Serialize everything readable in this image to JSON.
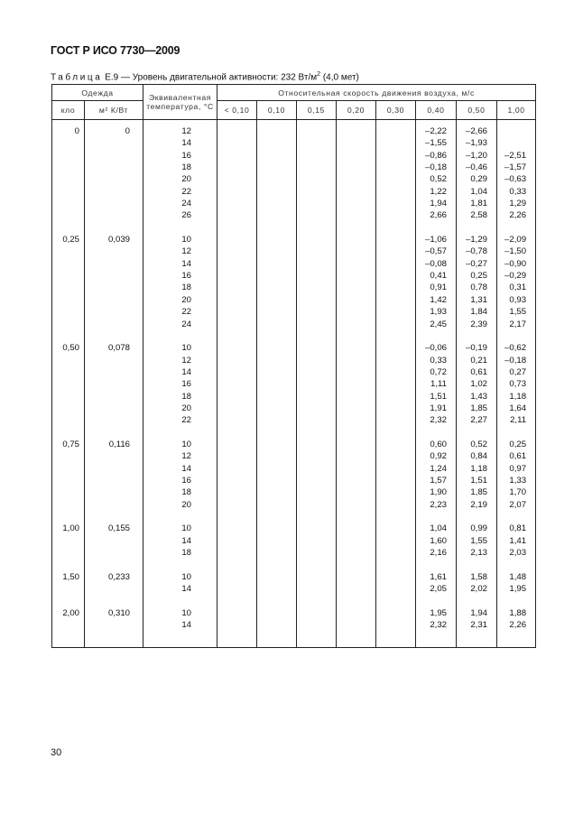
{
  "header": {
    "doc_title": "ГОСТ Р ИСО 7730—2009"
  },
  "caption": {
    "prefix": "Таблица",
    "text": " Е.9 — Уровень двигательной активности: 232 Вт/м",
    "sup": "2",
    "suffix": " (4,0 мет)"
  },
  "table": {
    "headers": {
      "clothing": "Одежда",
      "temperature": "Эквивалентная температура, °С",
      "air_speed": "Относительная скорость движения воздуха, м/с",
      "clo": "кло",
      "m2": "м² К/Вт",
      "speeds": [
        "< 0,10",
        "0,10",
        "0,15",
        "0,20",
        "0,30",
        "0,40",
        "0,50",
        "1,00"
      ]
    },
    "groups": [
      {
        "clo": "0",
        "m2": "0",
        "rows": [
          [
            "12",
            "–2,22",
            "–2,66",
            ""
          ],
          [
            "14",
            "–1,55",
            "–1,93",
            ""
          ],
          [
            "16",
            "–0,86",
            "–1,20",
            "–2,51"
          ],
          [
            "18",
            "–0,18",
            "–0,46",
            "–1,57"
          ],
          [
            "20",
            "0,52",
            "0,29",
            "–0,63"
          ],
          [
            "22",
            "1,22",
            "1,04",
            "0,33"
          ],
          [
            "24",
            "1,94",
            "1,81",
            "1,29"
          ],
          [
            "26",
            "2,66",
            "2,58",
            "2,26"
          ]
        ]
      },
      {
        "clo": "0,25",
        "m2": "0,039",
        "rows": [
          [
            "10",
            "–1,06",
            "–1,29",
            "–2,09"
          ],
          [
            "12",
            "–0,57",
            "–0,78",
            "–1,50"
          ],
          [
            "14",
            "–0,08",
            "–0,27",
            "–0,90"
          ],
          [
            "16",
            "0,41",
            "0,25",
            "–0,29"
          ],
          [
            "18",
            "0,91",
            "0,78",
            "0,31"
          ],
          [
            "20",
            "1,42",
            "1,31",
            "0,93"
          ],
          [
            "22",
            "1,93",
            "1,84",
            "1,55"
          ],
          [
            "24",
            "2,45",
            "2,39",
            "2,17"
          ]
        ]
      },
      {
        "clo": "0,50",
        "m2": "0,078",
        "rows": [
          [
            "10",
            "–0,06",
            "–0,19",
            "–0,62"
          ],
          [
            "12",
            "0,33",
            "0,21",
            "–0,18"
          ],
          [
            "14",
            "0,72",
            "0,61",
            "0,27"
          ],
          [
            "16",
            "1,11",
            "1,02",
            "0,73"
          ],
          [
            "18",
            "1,51",
            "1,43",
            "1,18"
          ],
          [
            "20",
            "1,91",
            "1,85",
            "1,64"
          ],
          [
            "22",
            "2,32",
            "2,27",
            "2,11"
          ]
        ]
      },
      {
        "clo": "0,75",
        "m2": "0,116",
        "rows": [
          [
            "10",
            "0,60",
            "0,52",
            "0,25"
          ],
          [
            "12",
            "0,92",
            "0,84",
            "0,61"
          ],
          [
            "14",
            "1,24",
            "1,18",
            "0,97"
          ],
          [
            "16",
            "1,57",
            "1,51",
            "1,33"
          ],
          [
            "18",
            "1,90",
            "1,85",
            "1,70"
          ],
          [
            "20",
            "2,23",
            "2,19",
            "2,07"
          ]
        ]
      },
      {
        "clo": "1,00",
        "m2": "0,155",
        "rows": [
          [
            "10",
            "1,04",
            "0,99",
            "0,81"
          ],
          [
            "14",
            "1,60",
            "1,55",
            "1,41"
          ],
          [
            "18",
            "2,16",
            "2,13",
            "2,03"
          ]
        ]
      },
      {
        "clo": "1,50",
        "m2": "0,233",
        "rows": [
          [
            "10",
            "1,61",
            "1,58",
            "1,48"
          ],
          [
            "14",
            "2,05",
            "2,02",
            "1,95"
          ]
        ]
      },
      {
        "clo": "2,00",
        "m2": "0,310",
        "rows": [
          [
            "10",
            "1,95",
            "1,94",
            "1,88"
          ],
          [
            "14",
            "2,32",
            "2,31",
            "2,26"
          ]
        ]
      }
    ]
  },
  "footer": {
    "page_number": "30"
  }
}
